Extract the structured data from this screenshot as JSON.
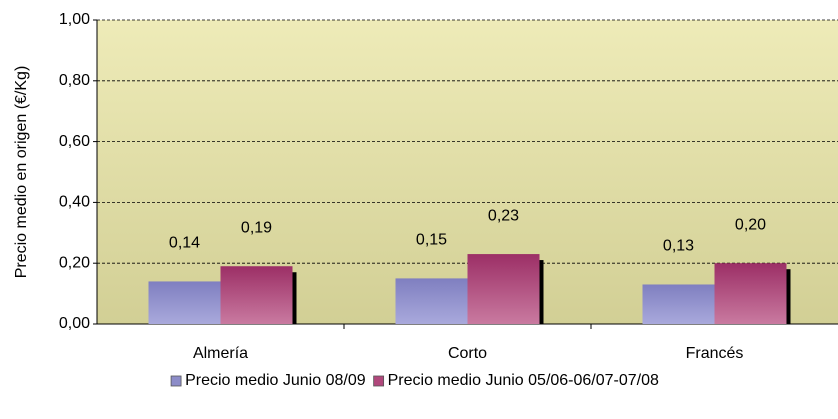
{
  "chart_data": {
    "type": "bar",
    "y_label": "Precio medio en origen (€/Kg)",
    "categories": [
      "Almería",
      "Corto",
      "Francés"
    ],
    "series": [
      {
        "name": "Precio medio Junio 08/09",
        "color": "#8c8cc8",
        "values": [
          0.14,
          0.15,
          0.13
        ],
        "value_labels": [
          "0,14",
          "0,15",
          "0,13"
        ]
      },
      {
        "name": "Precio medio Junio 05/06-06/07-07/08",
        "color": "#b0487c",
        "values": [
          0.19,
          0.23,
          0.2
        ],
        "value_labels": [
          "0,19",
          "0,23",
          "0,20"
        ]
      }
    ],
    "ylim": [
      0,
      1
    ],
    "yticks": [
      {
        "value": 0,
        "label": "0,00"
      },
      {
        "value": 0.2,
        "label": "0,20"
      },
      {
        "value": 0.4,
        "label": "0,40"
      },
      {
        "value": 0.6,
        "label": "0,60"
      },
      {
        "value": 0.8,
        "label": "0,80"
      },
      {
        "value": 1,
        "label": "1,00"
      }
    ],
    "grid": true,
    "legend": "bottom"
  }
}
